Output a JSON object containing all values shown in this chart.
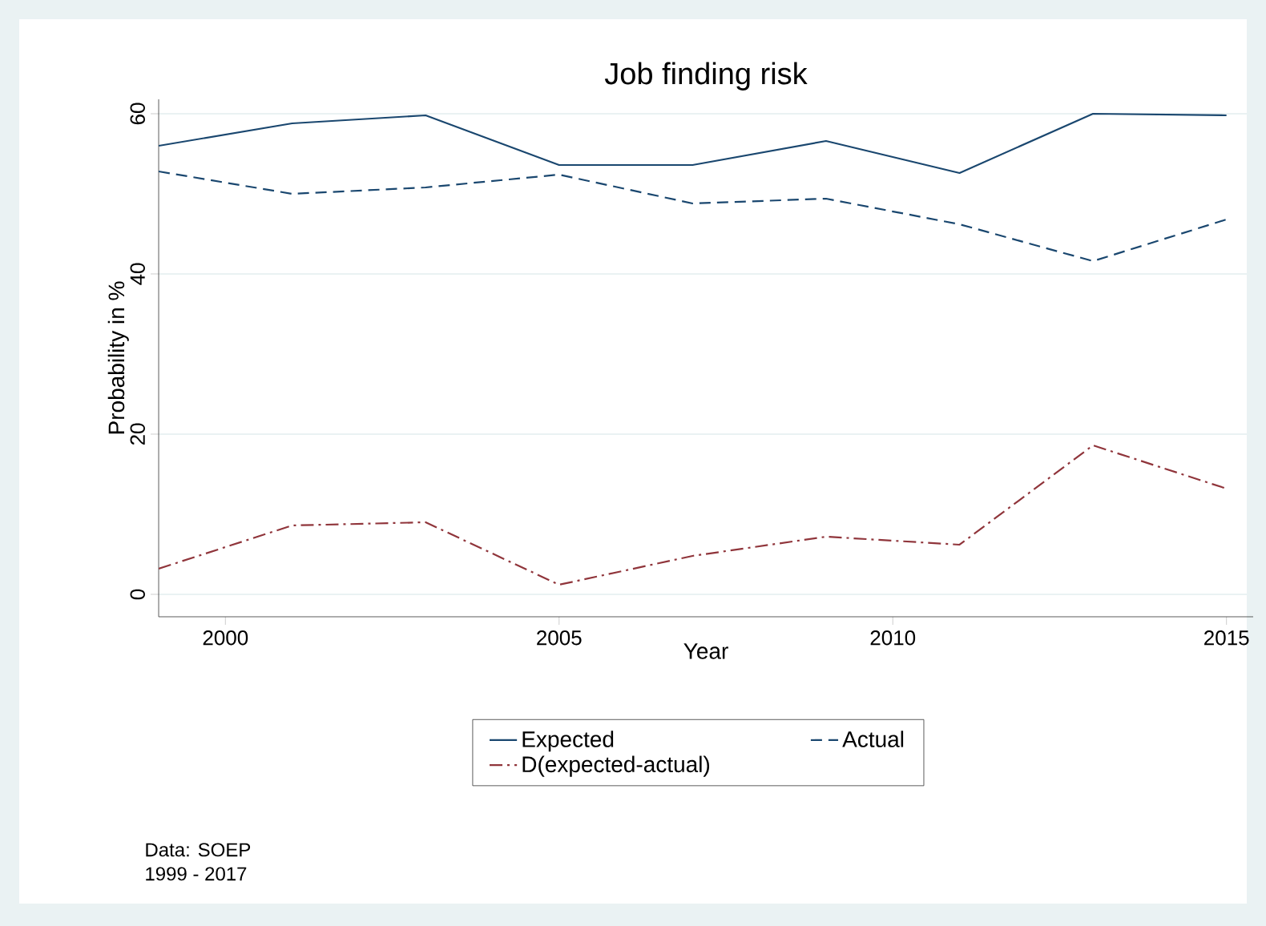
{
  "chart_data": {
    "type": "line",
    "title": "Job finding risk",
    "xlabel": "Year",
    "ylabel": "Probability in %",
    "x": [
      1999,
      2001,
      2003,
      2005,
      2007,
      2009,
      2011,
      2013,
      2015
    ],
    "series": [
      {
        "name": "Expected",
        "color": "#1a476f",
        "line_style": "solid",
        "values": [
          56,
          58.8,
          59.8,
          53.6,
          53.6,
          56.6,
          52.6,
          60,
          59.8
        ]
      },
      {
        "name": "Actual",
        "color": "#1a476f",
        "line_style": "dashed",
        "values": [
          52.8,
          50,
          50.8,
          52.4,
          48.8,
          49.4,
          46.2,
          41.6,
          46.8
        ]
      },
      {
        "name": "D(expected-actual)",
        "color": "#90353b",
        "line_style": "dashdot",
        "values": [
          3.2,
          8.6,
          9,
          1.2,
          4.8,
          7.2,
          6.2,
          18.6,
          13.2
        ]
      }
    ],
    "xlim": [
      1999,
      2015.4
    ],
    "ylim": [
      -2.8,
      61.8
    ],
    "xticks": [
      2000,
      2005,
      2010,
      2015
    ],
    "yticks": [
      0,
      20,
      40,
      60
    ],
    "grid": "y",
    "legend": "bottom",
    "marker": "none",
    "annotations": [
      "Data: SOEP",
      "1999 - 2017"
    ]
  }
}
